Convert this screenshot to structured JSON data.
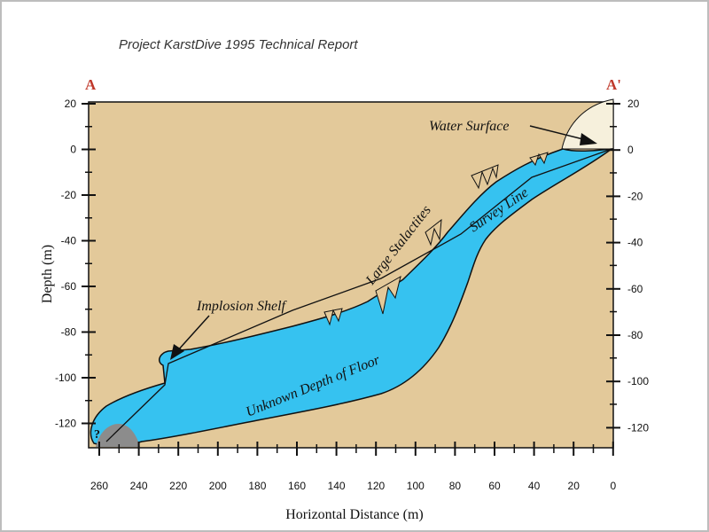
{
  "report_title": "Project KarstDive 1995 Technical Report",
  "section_start": "A",
  "section_end": "A'",
  "axes": {
    "y_label": "Depth (m)",
    "x_label": "Horizontal Distance (m)",
    "y_ticks": [
      "20",
      "0",
      "-20",
      "-40",
      "-60",
      "-80",
      "-100",
      "-120"
    ],
    "y_ticks_right": [
      "20",
      "0",
      "-20",
      "-40",
      "-60",
      "-80",
      "-100",
      "-120"
    ],
    "x_ticks": [
      "260",
      "240",
      "220",
      "200",
      "180",
      "160",
      "140",
      "120",
      "100",
      "80",
      "60",
      "40",
      "20",
      "0"
    ]
  },
  "annotations": {
    "water_surface": "Water Surface",
    "large_stalactites": "Large Stalactites",
    "survey_line": "Survey Line",
    "implosion_shelf": "Implosion Shelf",
    "unknown_depth": "Unknown Depth of Floor",
    "unknown_marker": "?"
  },
  "colors": {
    "rock": "#e3c99a",
    "water": "#36c2f0",
    "sediment": "#8c8c8c",
    "sky": "#f6f0dc"
  }
}
